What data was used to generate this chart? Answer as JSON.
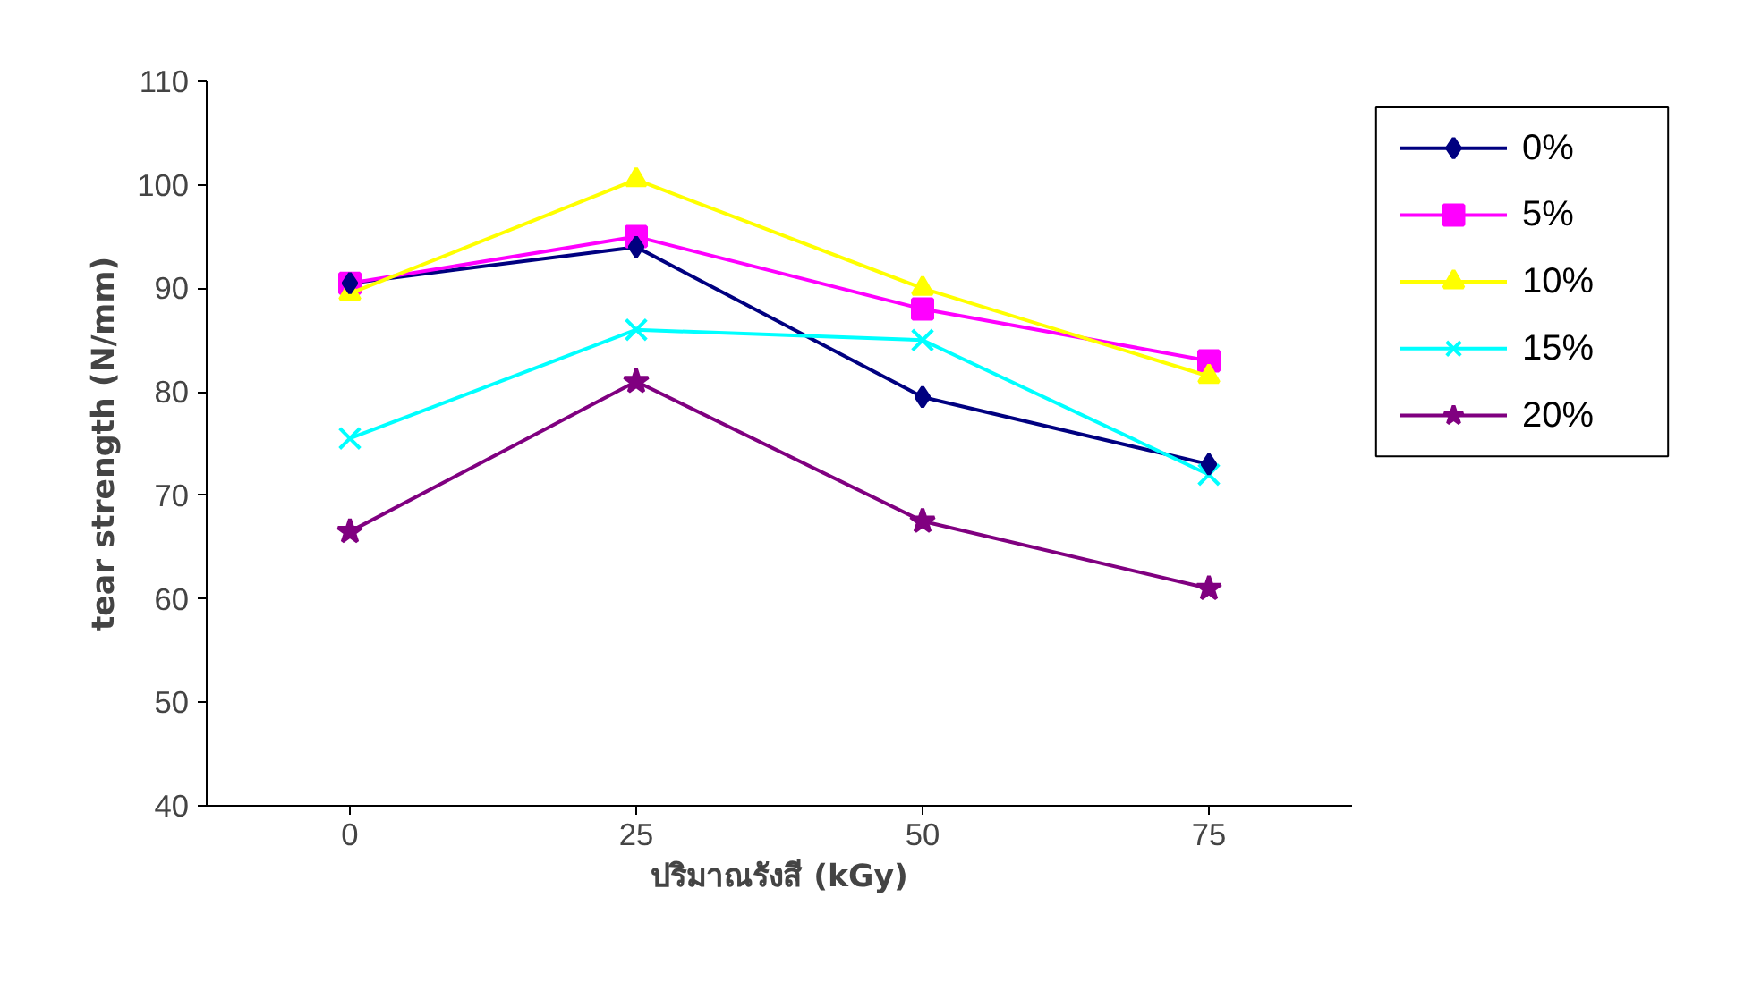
{
  "chart_data": {
    "type": "line",
    "xlabel": "ปริมาณรังสี (kGy)",
    "ylabel": "tear strength (N/mm)",
    "categories": [
      "0",
      "25",
      "50",
      "75"
    ],
    "ylim": [
      40,
      110
    ],
    "yticks": [
      40,
      50,
      60,
      70,
      80,
      90,
      100,
      110
    ],
    "grid": false,
    "legend": "right",
    "line_style": "solid",
    "series": [
      {
        "name": "0%",
        "color": "#000080",
        "marker": "diamond",
        "values": [
          90.5,
          94,
          79.5,
          73
        ]
      },
      {
        "name": "5%",
        "color": "#ff00ff",
        "marker": "square",
        "values": [
          90.5,
          95,
          88,
          83
        ]
      },
      {
        "name": "10%",
        "color": "#ffff00",
        "marker": "triangle",
        "values": [
          89.5,
          100.5,
          90,
          81.5
        ]
      },
      {
        "name": "15%",
        "color": "#00ffff",
        "marker": "cross",
        "values": [
          75.5,
          86,
          85,
          72
        ]
      },
      {
        "name": "20%",
        "color": "#800080",
        "marker": "star",
        "values": [
          66.5,
          81,
          67.5,
          61
        ]
      }
    ]
  }
}
